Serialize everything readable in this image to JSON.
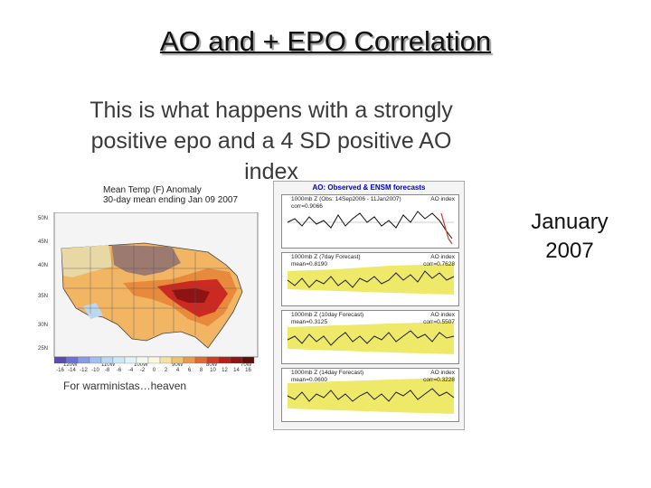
{
  "slide_title": "AO and + EPO Correlation",
  "caption": "This is what happens with a strongly positive epo and a 4 SD positive AO index",
  "map": {
    "title_line1": "Mean Temp (F) Anomaly",
    "title_line2": "30-day mean ending Jan 09 2007",
    "lat_labels": [
      "50N",
      "45N",
      "40N",
      "35N",
      "30N",
      "25N"
    ],
    "lon_labels": [
      "120W",
      "110W",
      "100W",
      "90W",
      "80W",
      "70W"
    ],
    "scale_labels": [
      "-16",
      "-14",
      "-12",
      "-10",
      "-8",
      "-6",
      "-4",
      "-2",
      "0",
      "2",
      "4",
      "6",
      "8",
      "10",
      "12",
      "14",
      "16"
    ],
    "scale_colors": [
      "#5a4bb0",
      "#6f6fd6",
      "#8a9ae6",
      "#9fbff0",
      "#b8d8f4",
      "#cfe8f6",
      "#e2f2f6",
      "#f2f8f0",
      "#fbf7dd",
      "#f6e2a0",
      "#f2c36a",
      "#ea9a48",
      "#e06a30",
      "#d23a22",
      "#b81c1c",
      "#8c1414",
      "#5e0c0c"
    ],
    "note": "For warministas…heaven"
  },
  "ao_panel": {
    "header": "AO: Observed & ENSM forecasts",
    "panels": [
      {
        "title": "1000mb Z (Obs: 14Sep2006 - 11Jan2007)",
        "index": "AO index",
        "mean": "corr=0.9066"
      },
      {
        "title": "1000mb Z (7day Forecast)",
        "index": "AO index",
        "mean": "mean=0.8190",
        "corr": "corr=0.7628"
      },
      {
        "title": "1000mb Z (10day Forecast)",
        "index": "AO index",
        "mean": "mean=0.3125",
        "corr": "corr=0.5507"
      },
      {
        "title": "1000mb Z (14day Forecast)",
        "index": "AO index",
        "mean": "mean=0.0600",
        "corr": "corr=0.3228"
      }
    ]
  },
  "side_label": {
    "line1": "January",
    "line2": "2007"
  }
}
